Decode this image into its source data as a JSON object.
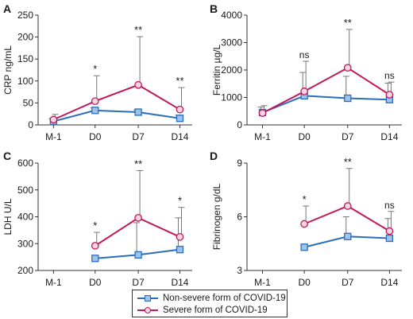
{
  "colors": {
    "non_severe": "#2a6ebb",
    "severe": "#c2185b",
    "marker_fill": "#f7d6e2",
    "marker_fill_ns": "#9ec4ec",
    "axis": "#333333",
    "error": "#777777"
  },
  "legend": {
    "items": [
      {
        "label": "Non-severe form of COVID-19",
        "series": "non_severe"
      },
      {
        "label": "Severe form of COVID-19",
        "series": "severe"
      }
    ]
  },
  "chart_data": [
    {
      "panel": "A",
      "type": "line",
      "ylabel": "CRP ng/mL",
      "categories": [
        "M-1",
        "D0",
        "D7",
        "D14"
      ],
      "ylim": [
        0,
        250
      ],
      "yticks": [
        0,
        50,
        100,
        150,
        200,
        250
      ],
      "series": [
        {
          "name": "Non-severe form of COVID-19",
          "key": "non_severe",
          "values": [
            8,
            33,
            29,
            15
          ],
          "err": [
            6,
            6,
            5,
            7
          ]
        },
        {
          "name": "Severe form of COVID-19",
          "key": "severe",
          "values": [
            12,
            54,
            91,
            35
          ],
          "err": [
            12,
            58,
            110,
            50
          ]
        }
      ],
      "annotations": [
        "",
        "*",
        "**",
        "**"
      ]
    },
    {
      "panel": "B",
      "type": "line",
      "ylabel": "Ferritin µg/L",
      "categories": [
        "M-1",
        "D0",
        "D7",
        "D14"
      ],
      "ylim": [
        0,
        4000
      ],
      "yticks": [
        0,
        1000,
        2000,
        3000,
        4000
      ],
      "series": [
        {
          "name": "Non-severe form of COVID-19",
          "key": "non_severe",
          "values": [
            450,
            1060,
            970,
            920
          ],
          "err": [
            200,
            850,
            800,
            600
          ]
        },
        {
          "name": "Severe form of COVID-19",
          "key": "severe",
          "values": [
            430,
            1220,
            2080,
            1100
          ],
          "err": [
            270,
            1100,
            1400,
            460
          ]
        }
      ],
      "annotations": [
        "",
        "ns",
        "**",
        "ns"
      ]
    },
    {
      "panel": "C",
      "type": "line",
      "ylabel": "LDH U/L",
      "categories": [
        "M-1",
        "D0",
        "D7",
        "D14"
      ],
      "ylim": [
        200,
        600
      ],
      "yticks": [
        200,
        300,
        400,
        500,
        600
      ],
      "series": [
        {
          "name": "Non-severe form of COVID-19",
          "key": "non_severe",
          "values": [
            null,
            245,
            258,
            278
          ],
          "err": [
            null,
            0,
            120,
            118
          ]
        },
        {
          "name": "Severe form of COVID-19",
          "key": "severe",
          "values": [
            null,
            292,
            396,
            325
          ],
          "err": [
            null,
            50,
            176,
            110
          ]
        }
      ],
      "annotations": [
        "",
        "*",
        "**",
        "*"
      ]
    },
    {
      "panel": "D",
      "type": "line",
      "ylabel": "Fibrinogen g/dL",
      "categories": [
        "M-1",
        "D0",
        "D7",
        "D14"
      ],
      "ylim": [
        3,
        9
      ],
      "yticks": [
        3,
        6,
        9
      ],
      "series": [
        {
          "name": "Non-severe form of COVID-19",
          "key": "non_severe",
          "values": [
            null,
            4.3,
            4.9,
            4.8
          ],
          "err": [
            null,
            0,
            1.1,
            1.1
          ]
        },
        {
          "name": "Severe form of COVID-19",
          "key": "severe",
          "values": [
            null,
            5.6,
            6.6,
            5.2
          ],
          "err": [
            null,
            1.0,
            2.1,
            1.1
          ]
        }
      ],
      "annotations": [
        "",
        "*",
        "**",
        "ns"
      ]
    }
  ]
}
